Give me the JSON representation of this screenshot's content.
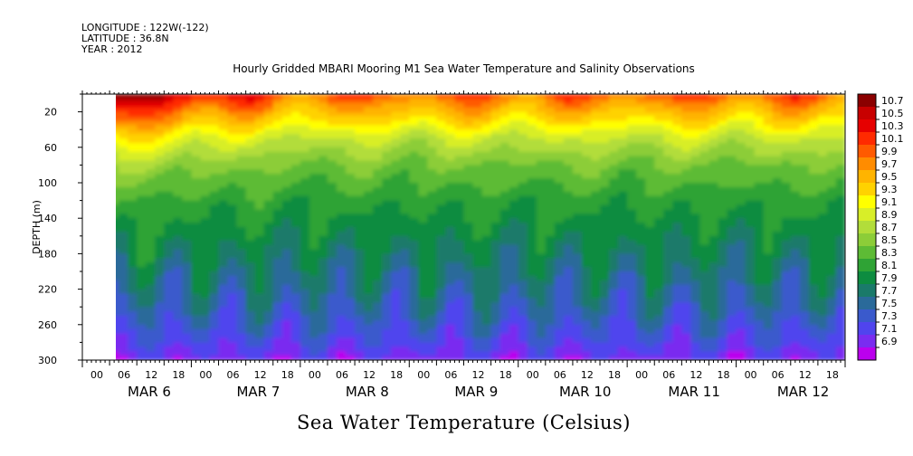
{
  "header": {
    "longitude": "LONGITUDE : 122W(-122)",
    "latitude": "LATITUDE : 36.8N",
    "year": "YEAR : 2012"
  },
  "chart_data": {
    "type": "heatmap",
    "title": "Hourly Gridded MBARI Mooring M1 Sea Water Temperature and Salinity Observations",
    "footer": "Sea Water Temperature (Celsius)",
    "ylabel": "DEPTH (m)",
    "ylim": [
      300,
      0
    ],
    "y_ticks": [
      "20",
      "60",
      "100",
      "140",
      "180",
      "220",
      "260",
      "300"
    ],
    "y_tick_values": [
      20,
      60,
      100,
      140,
      180,
      220,
      260,
      300
    ],
    "x_hour_ticks": [
      "00",
      "06",
      "12",
      "18",
      "00",
      "06",
      "12",
      "18",
      "00",
      "06",
      "12",
      "18",
      "00",
      "06",
      "12",
      "18",
      "00",
      "06",
      "12",
      "18",
      "00",
      "06",
      "12",
      "18",
      "00",
      "06",
      "12",
      "18"
    ],
    "x_day_labels": [
      "MAR  6",
      "MAR  7",
      "MAR  8",
      "MAR  9",
      "MAR 10",
      "MAR 11",
      "MAR 12"
    ],
    "data_start_hour": 4,
    "colorbar_labels": [
      "10.7",
      "10.5",
      "10.3",
      "10.1",
      "9.9",
      "9.7",
      "9.5",
      "9.3",
      "9.1",
      "8.9",
      "8.7",
      "8.5",
      "8.3",
      "8.1",
      "7.9",
      "7.7",
      "7.5",
      "7.3",
      "7.1",
      "6.9"
    ],
    "colorbar_colors": [
      "#8b0000",
      "#c80000",
      "#e60000",
      "#ff2a00",
      "#ff5a00",
      "#ff8c00",
      "#ffb400",
      "#ffd200",
      "#ffff00",
      "#d8ee28",
      "#b2dd3a",
      "#8ccd38",
      "#5dbb35",
      "#2fa335",
      "#0d8c40",
      "#1a7a6a",
      "#2a6a9a",
      "#3a5acc",
      "#5044ee",
      "#7a2cf0",
      "#bb00ee"
    ],
    "depth_temperature_profile": [
      {
        "depth": 10,
        "temperature": 9.7
      },
      {
        "depth": 30,
        "temperature": 9.3
      },
      {
        "depth": 50,
        "temperature": 8.9
      },
      {
        "depth": 80,
        "temperature": 8.5
      },
      {
        "depth": 120,
        "temperature": 8.2
      },
      {
        "depth": 160,
        "temperature": 8.0
      },
      {
        "depth": 200,
        "temperature": 7.8
      },
      {
        "depth": 240,
        "temperature": 7.6
      },
      {
        "depth": 280,
        "temperature": 7.3
      },
      {
        "depth": 300,
        "temperature": 7.1
      }
    ]
  }
}
